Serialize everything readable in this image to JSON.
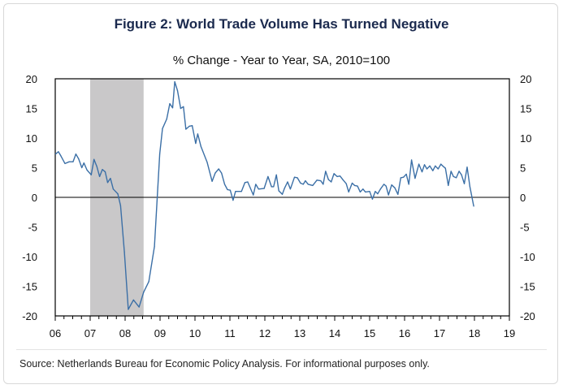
{
  "chart_data": {
    "type": "line",
    "title": "Figure 2: World Trade Volume Has Turned Negative",
    "subtitle": "% Change - Year to Year, SA, 2010=100",
    "xlabel": "",
    "ylabel": "",
    "xlim": [
      2006,
      2019
    ],
    "ylim": [
      -20,
      20
    ],
    "x_tick_labels": [
      "06",
      "07",
      "08",
      "09",
      "10",
      "11",
      "12",
      "13",
      "14",
      "15",
      "16",
      "17",
      "18",
      "19"
    ],
    "y_tick_labels": [
      "20",
      "15",
      "10",
      "5",
      "0",
      "-5",
      "-10",
      "-15",
      "-20"
    ],
    "y_ticks": [
      20,
      15,
      10,
      5,
      0,
      -5,
      -10,
      -15,
      -20
    ],
    "grid": false,
    "shaded_region": [
      2007.0,
      2008.53
    ],
    "colors": {
      "line": "#3b6fa6",
      "shade": "#c9c8c9",
      "title": "#1b2a4e"
    },
    "series": [
      {
        "x": [
          2006.01,
          2006.09,
          2006.16,
          2006.28,
          2006.4,
          2006.51,
          2006.59,
          2006.67,
          2006.76,
          2006.82,
          2006.91,
          2007.03,
          2007.11,
          2007.19,
          2007.27,
          2007.35,
          2007.43,
          2007.5,
          2007.58,
          2007.66,
          2007.79,
          2007.87,
          2007.98,
          2008.09,
          2008.24,
          2008.4,
          2008.53,
          2008.68,
          2008.84,
          2008.99,
          2009.07,
          2009.19,
          2009.28,
          2009.36,
          2009.42,
          2009.5,
          2009.59,
          2009.67,
          2009.74,
          2009.84,
          2009.92,
          2010.02,
          2010.08,
          2010.17,
          2010.35,
          2010.49,
          2010.58,
          2010.68,
          2010.76,
          2010.85,
          2010.93,
          2011.01,
          2011.09,
          2011.16,
          2011.33,
          2011.43,
          2011.51,
          2011.67,
          2011.74,
          2011.82,
          2011.98,
          2012.09,
          2012.19,
          2012.25,
          2012.33,
          2012.4,
          2012.5,
          2012.56,
          2012.65,
          2012.73,
          2012.85,
          2012.93,
          2013.02,
          2013.1,
          2013.16,
          2013.24,
          2013.37,
          2013.49,
          2013.6,
          2013.67,
          2013.74,
          2013.82,
          2013.9,
          2013.98,
          2014.07,
          2014.15,
          2014.23,
          2014.33,
          2014.4,
          2014.5,
          2014.57,
          2014.65,
          2014.73,
          2014.81,
          2014.88,
          2015.0,
          2015.08,
          2015.16,
          2015.23,
          2015.31,
          2015.41,
          2015.47,
          2015.54,
          2015.63,
          2015.72,
          2015.81,
          2015.89,
          2015.97,
          2016.05,
          2016.12,
          2016.2,
          2016.3,
          2016.41,
          2016.5,
          2016.57,
          2016.64,
          2016.72,
          2016.81,
          2016.88,
          2016.96,
          2017.04,
          2017.09,
          2017.17,
          2017.25,
          2017.33,
          2017.4,
          2017.48,
          2017.56,
          2017.63,
          2017.71,
          2017.79,
          2017.87,
          2017.98
        ],
        "y": [
          7.3,
          7.7,
          7.0,
          5.7,
          6.0,
          6.0,
          7.3,
          6.5,
          5.0,
          5.8,
          4.6,
          3.8,
          6.4,
          5.2,
          3.5,
          4.7,
          4.3,
          2.5,
          3.2,
          1.4,
          0.6,
          -1.4,
          -9.2,
          -18.9,
          -17.3,
          -18.5,
          -16.0,
          -14.2,
          -8.3,
          7.3,
          11.6,
          13.2,
          15.8,
          15.1,
          19.5,
          18.0,
          15.0,
          15.3,
          11.5,
          12.0,
          12.1,
          9.1,
          10.7,
          8.6,
          5.9,
          2.7,
          4.1,
          4.8,
          4.1,
          2.2,
          1.3,
          1.2,
          -0.5,
          1.0,
          1.0,
          2.5,
          2.6,
          0.4,
          2.2,
          1.4,
          1.5,
          3.5,
          1.8,
          1.8,
          3.8,
          1.1,
          0.5,
          1.5,
          2.6,
          1.4,
          3.4,
          3.3,
          2.4,
          2.2,
          2.8,
          2.2,
          2.0,
          2.9,
          2.8,
          2.2,
          4.4,
          3.0,
          2.6,
          4.0,
          3.5,
          3.6,
          3.0,
          2.3,
          0.9,
          2.4,
          2.0,
          1.9,
          0.9,
          1.4,
          0.9,
          1.0,
          -0.3,
          1.0,
          0.6,
          1.4,
          2.2,
          1.9,
          0.4,
          2.1,
          1.6,
          0.5,
          3.3,
          3.4,
          3.9,
          2.2,
          6.3,
          3.2,
          5.6,
          4.3,
          5.5,
          4.8,
          5.3,
          4.5,
          5.3,
          4.8,
          5.6,
          5.3,
          4.9,
          2.0,
          4.4,
          3.5,
          3.3,
          4.4,
          3.8,
          2.3,
          5.1,
          1.8,
          -1.5
        ]
      }
    ]
  },
  "footer": {
    "source": "Source: Netherlands Bureau for Economic Policy Analysis. For informational purposes only."
  }
}
